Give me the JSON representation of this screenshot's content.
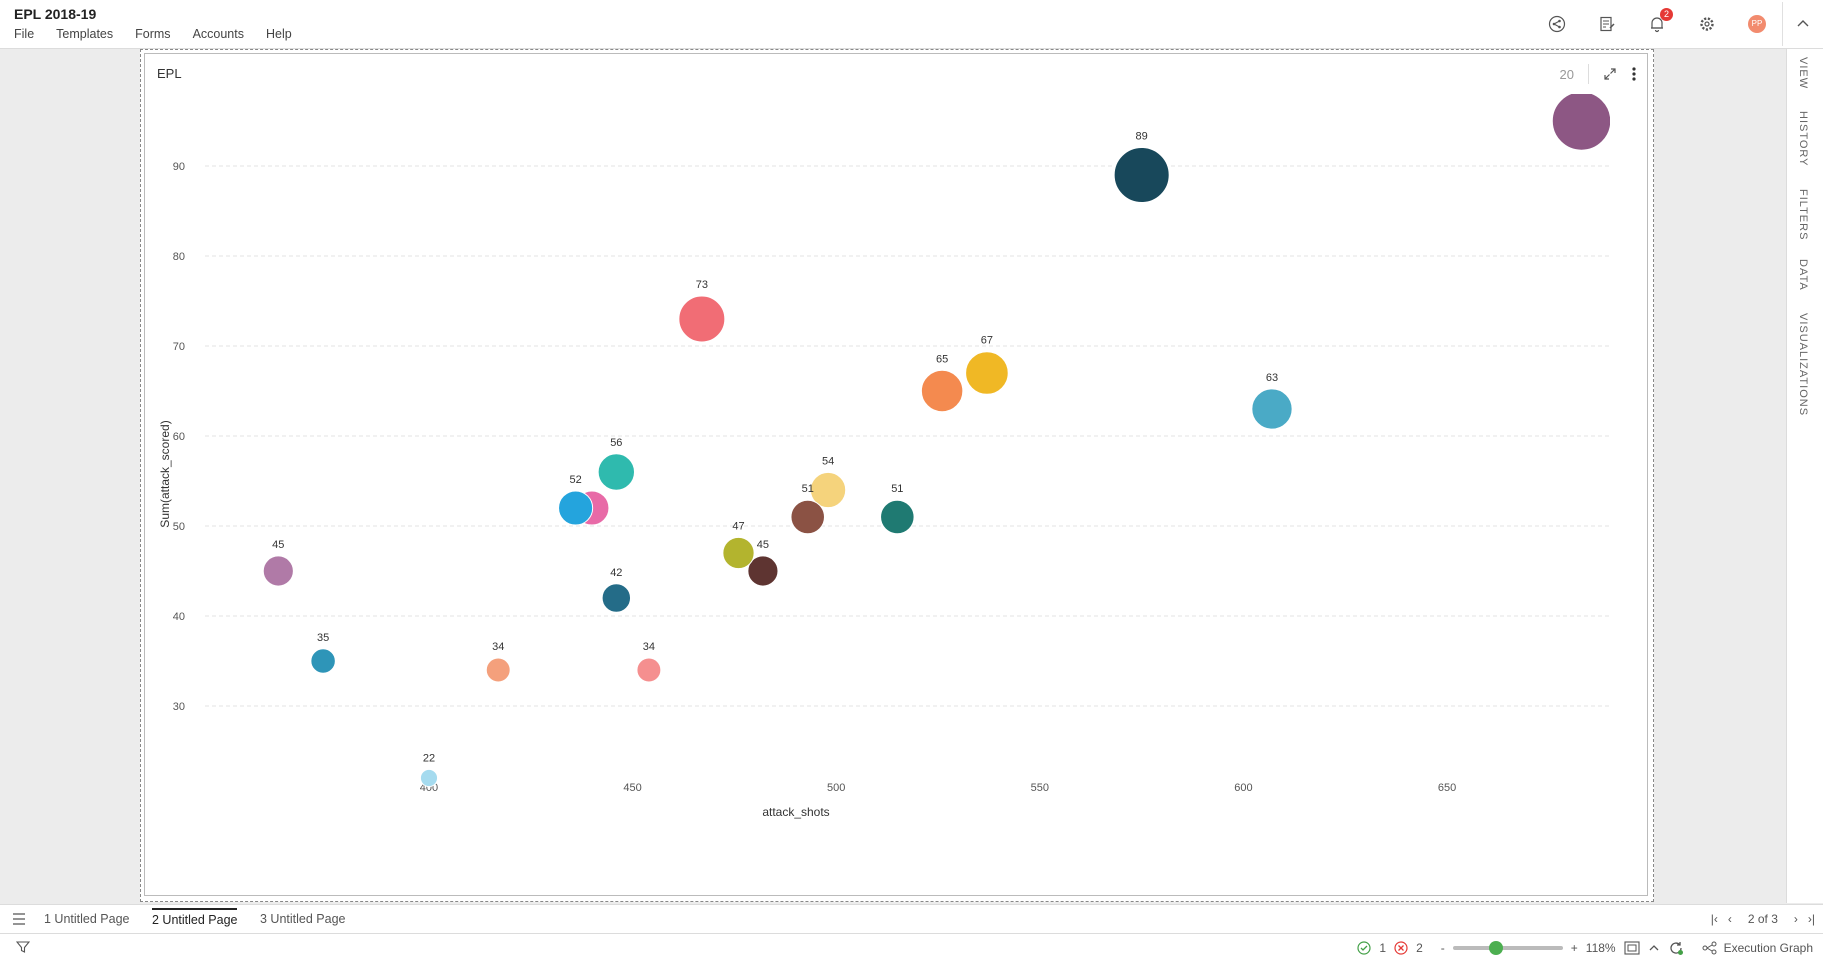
{
  "app": {
    "title": "EPL 2018-19"
  },
  "menu": [
    "File",
    "Templates",
    "Forms",
    "Accounts",
    "Help"
  ],
  "topbar": {
    "notification_count": "2",
    "avatar_initials": "PP"
  },
  "right_rail": [
    "VIEW",
    "HISTORY",
    "FILTERS",
    "DATA",
    "VISUALIZATIONS"
  ],
  "widget": {
    "title": "EPL",
    "count_label": "20"
  },
  "tabs": [
    "1 Untitled Page",
    "2 Untitled Page",
    "3 Untitled Page"
  ],
  "active_tab": 1,
  "pager": {
    "label": "2 of 3"
  },
  "status": {
    "ok_count": "1",
    "error_count": "2",
    "zoom_minus": "-",
    "zoom_plus": "+",
    "zoom": "118%",
    "exec_label": "Execution Graph"
  },
  "chart_data": {
    "type": "scatter",
    "title": "EPL",
    "xlabel": "attack_shots",
    "ylabel": "Sum(attack_scored)",
    "xlim": [
      345,
      690
    ],
    "ylim": [
      18,
      98
    ],
    "x_ticks": [
      400,
      450,
      500,
      550,
      600,
      650
    ],
    "y_ticks": [
      30,
      40,
      50,
      60,
      70,
      80,
      90
    ],
    "grid": "horizontal dashed",
    "points": [
      {
        "x": 363,
        "y": 45,
        "size": 45,
        "label": "45",
        "color": "#b07aa7"
      },
      {
        "x": 374,
        "y": 35,
        "size": 35,
        "label": "35",
        "color": "#2e95b8"
      },
      {
        "x": 400,
        "y": 22,
        "size": 22,
        "label": "22",
        "color": "#a5dbef"
      },
      {
        "x": 417,
        "y": 34,
        "size": 34,
        "label": "34",
        "color": "#f4a07c"
      },
      {
        "x": 440,
        "y": 52,
        "size": 52,
        "label": "",
        "color": "#e86aa7"
      },
      {
        "x": 436,
        "y": 52,
        "size": 52,
        "label": "52",
        "color": "#24a4dd"
      },
      {
        "x": 446,
        "y": 56,
        "size": 56,
        "label": "56",
        "color": "#2fbaae"
      },
      {
        "x": 446,
        "y": 42,
        "size": 42,
        "label": "42",
        "color": "#246c88"
      },
      {
        "x": 454,
        "y": 34,
        "size": 34,
        "label": "34",
        "color": "#f58f8f"
      },
      {
        "x": 467,
        "y": 73,
        "size": 73,
        "label": "73",
        "color": "#f16d75"
      },
      {
        "x": 482,
        "y": 45,
        "size": 45,
        "label": "45",
        "color": "#5e3431"
      },
      {
        "x": 476,
        "y": 47,
        "size": 47,
        "label": "47",
        "color": "#b3b42e"
      },
      {
        "x": 498,
        "y": 54,
        "size": 54,
        "label": "54",
        "color": "#f5d37c"
      },
      {
        "x": 493,
        "y": 51,
        "size": 51,
        "label": "51",
        "color": "#8b5244"
      },
      {
        "x": 515,
        "y": 51,
        "size": 51,
        "label": "51",
        "color": "#1f7a72"
      },
      {
        "x": 526,
        "y": 65,
        "size": 65,
        "label": "65",
        "color": "#f48a4f"
      },
      {
        "x": 537,
        "y": 67,
        "size": 67,
        "label": "67",
        "color": "#f0b825"
      },
      {
        "x": 575,
        "y": 89,
        "size": 89,
        "label": "89",
        "color": "#18485b"
      },
      {
        "x": 607,
        "y": 63,
        "size": 63,
        "label": "63",
        "color": "#4aaac6"
      },
      {
        "x": 683,
        "y": 95,
        "size": 95,
        "label": "",
        "color": "#8d5784"
      }
    ]
  }
}
